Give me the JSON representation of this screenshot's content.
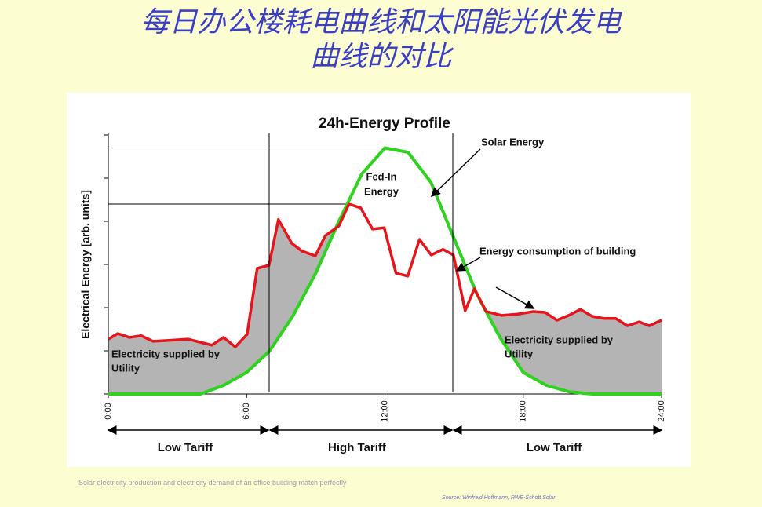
{
  "slide": {
    "title_lines": [
      "每日办公楼耗电曲线和太阳能光伏发电",
      "曲线的对比"
    ],
    "notes": [
      "Solar electricity production and electricity demand of an office building match perfectly",
      "Source: Winfreid Hoffmann, RWE-Schott Solar"
    ]
  },
  "chart_data": {
    "type": "line",
    "title": "24h-Energy Profile",
    "y_label": "Electrical Energy [arb. units]",
    "xlim": [
      0,
      24
    ],
    "ylim": [
      0,
      6
    ],
    "xticks": [
      {
        "value": 0,
        "label": "0:00"
      },
      {
        "value": 6,
        "label": "6:00"
      },
      {
        "value": 12,
        "label": "12:00"
      },
      {
        "value": 18,
        "label": "18:00"
      },
      {
        "value": 24,
        "label": "24:00"
      }
    ],
    "yticks": [
      0,
      1,
      2,
      3,
      4,
      5,
      6
    ],
    "series": [
      {
        "name": "Energy consumption of building",
        "color": "#e8141b",
        "x": [
          0,
          0.41,
          0.92,
          1.43,
          1.94,
          2.62,
          3.47,
          3.98,
          4.49,
          5.0,
          5.51,
          6.02,
          6.46,
          6.97,
          7.38,
          7.96,
          8.4,
          8.98,
          9.42,
          10.0,
          10.44,
          10.95,
          11.46,
          11.97,
          12.48,
          12.99,
          13.5,
          14.01,
          14.52,
          14.97,
          15.48,
          15.88,
          16.39,
          17.07,
          17.76,
          18.44,
          18.95,
          19.46,
          19.97,
          20.48,
          20.99,
          21.5,
          22.01,
          22.52,
          23.03,
          23.47,
          24
        ],
        "values": [
          1.27,
          1.4,
          1.31,
          1.35,
          1.22,
          1.24,
          1.27,
          1.2,
          1.13,
          1.31,
          1.09,
          1.38,
          2.91,
          2.98,
          4.04,
          3.49,
          3.31,
          3.2,
          3.67,
          3.89,
          4.4,
          4.31,
          3.82,
          3.85,
          2.8,
          2.73,
          3.58,
          3.22,
          3.35,
          3.22,
          1.93,
          2.44,
          1.91,
          1.82,
          1.85,
          1.91,
          1.89,
          1.71,
          1.82,
          1.96,
          1.8,
          1.75,
          1.75,
          1.58,
          1.67,
          1.58,
          1.71
        ]
      },
      {
        "name": "Solar Energy",
        "color": "#2fd31f",
        "x": [
          0,
          1,
          2,
          3,
          4,
          5,
          6,
          7,
          8,
          9,
          10,
          11,
          12,
          13,
          14,
          15,
          16,
          17,
          18,
          19,
          20,
          21,
          22,
          23,
          24
        ],
        "values": [
          0,
          0,
          0,
          0,
          0,
          0.2,
          0.5,
          1.0,
          1.8,
          2.8,
          4.0,
          5.1,
          5.7,
          5.6,
          4.9,
          3.6,
          2.3,
          1.3,
          0.5,
          0.2,
          0.05,
          0,
          0,
          0,
          0
        ]
      }
    ],
    "annotations": [
      "Fed-In",
      "Energy",
      "Electricity supplied by",
      "Utility",
      "Electricity supplied by",
      "Utility"
    ],
    "tariffs": [
      "Low Tariff",
      "High Tariff",
      "Low Tariff"
    ]
  }
}
